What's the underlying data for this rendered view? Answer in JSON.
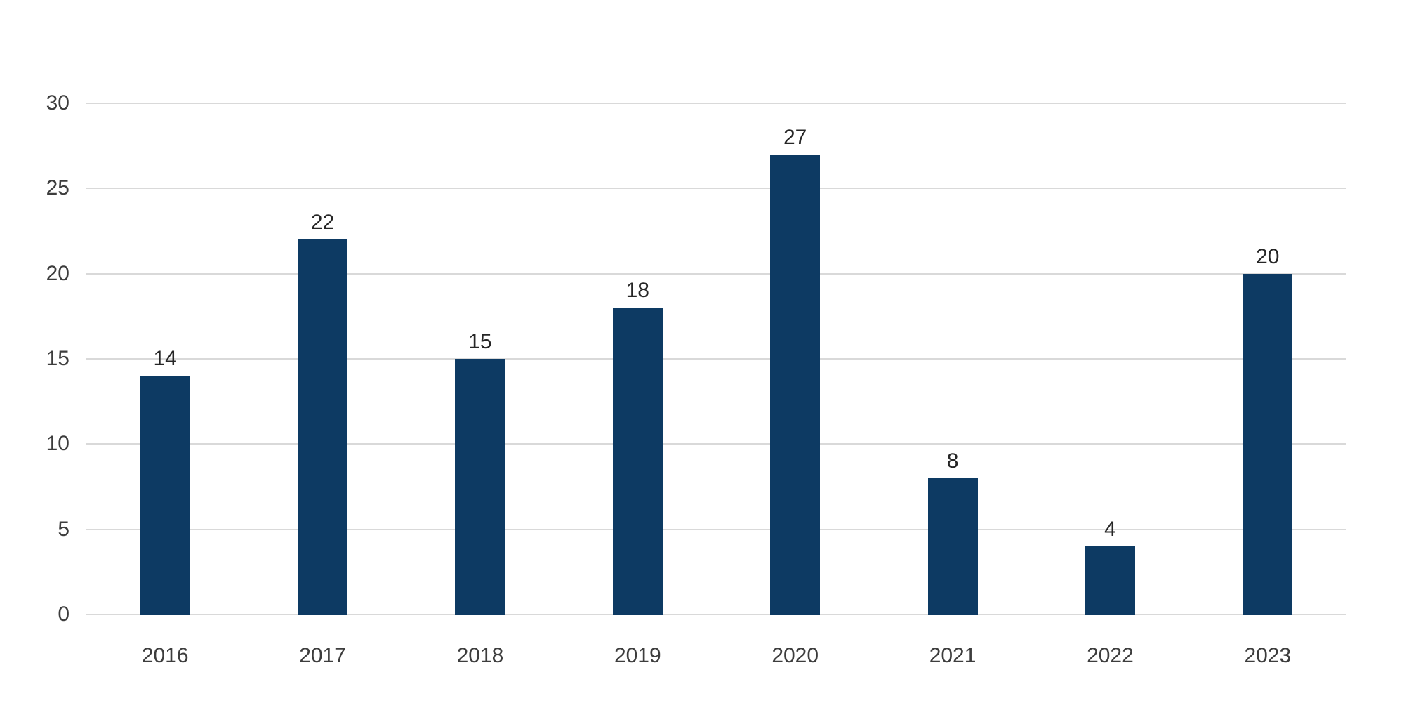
{
  "chart_data": {
    "type": "bar",
    "title": "",
    "xlabel": "",
    "ylabel": "",
    "categories": [
      "2016",
      "2017",
      "2018",
      "2019",
      "2020",
      "2021",
      "2022",
      "2023"
    ],
    "values": [
      14,
      22,
      15,
      18,
      27,
      8,
      4,
      20
    ],
    "yticks": [
      0,
      5,
      10,
      15,
      20,
      25,
      30
    ],
    "ylim": [
      0,
      30
    ],
    "grid": "horizontal",
    "legend": "none",
    "value_labels_shown": true,
    "colors": {
      "bar": "#0D3A63",
      "gridline": "#D9D9D9",
      "axis_tick_text": "#3D3D3D",
      "value_label_text": "#262626",
      "background": "#FFFFFF"
    }
  }
}
